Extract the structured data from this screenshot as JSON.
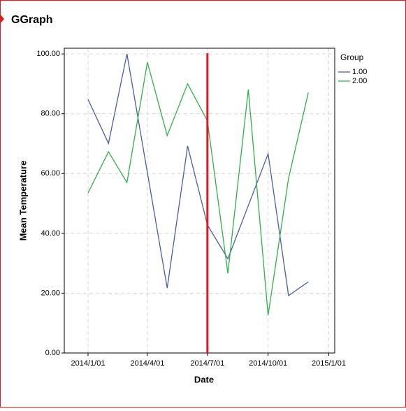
{
  "chart_data": {
    "type": "line",
    "title": "GGraph",
    "x_label": "Date",
    "y_label": "Mean Temperature",
    "x": [
      "2014/1/01",
      "2014/2/01",
      "2014/3/01",
      "2014/4/01",
      "2014/5/01",
      "2014/6/01",
      "2014/7/01",
      "2014/8/01",
      "2014/9/01",
      "2014/10/01",
      "2014/11/01",
      "2014/12/01"
    ],
    "legend_title": "Group",
    "series": [
      {
        "name": "1.00",
        "color": "#4a5e9e",
        "values": [
          84.8,
          70.1,
          100,
          60.3,
          21.7,
          69.2,
          42.8,
          31.5,
          49.3,
          66.6,
          19.2,
          23.8
        ]
      },
      {
        "name": "2.00",
        "color": "#2fb04a",
        "values": [
          53.5,
          67.3,
          57.0,
          97.2,
          72.7,
          90.0,
          77.6,
          26.6,
          88.1,
          12.6,
          58.4,
          87.1
        ]
      }
    ],
    "xlim": [
      "2013/11/26",
      "2015/1/10"
    ],
    "xticks": [
      "2014/1/01",
      "2014/4/01",
      "2014/7/01",
      "2014/10/01",
      "2015/1/01"
    ],
    "ylim": [
      0,
      101.9
    ],
    "yticks": [
      {
        "value": 0,
        "label": "0.00"
      },
      {
        "value": 20,
        "label": "20.00"
      },
      {
        "value": 40,
        "label": "40.00"
      },
      {
        "value": 60,
        "label": "60.00"
      },
      {
        "value": 80,
        "label": "80.00"
      },
      {
        "value": 100,
        "label": "100.00"
      }
    ],
    "grid": true,
    "legend_position": "right",
    "reference_x": "2014/7/01",
    "reference_color": "#e8141c"
  }
}
